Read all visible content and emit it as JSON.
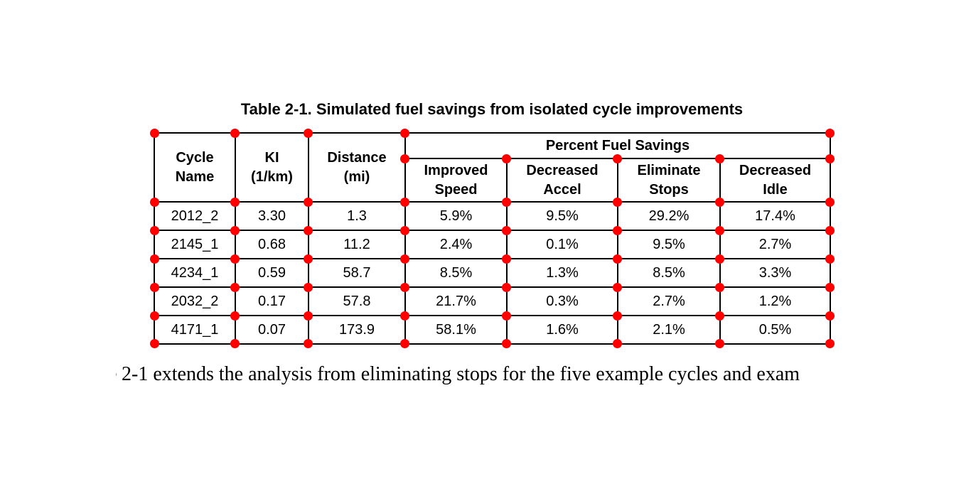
{
  "title": "Table 2-1. Simulated fuel savings from isolated cycle improvements",
  "table": {
    "span_header": "Percent Fuel Savings",
    "col_headers": [
      {
        "line1": "Cycle",
        "line2": "Name"
      },
      {
        "line1": "KI",
        "line2": "(1/km)"
      },
      {
        "line1": "Distance",
        "line2": "(mi)"
      },
      {
        "line1": "Improved",
        "line2": "Speed"
      },
      {
        "line1": "Decreased",
        "line2": "Accel"
      },
      {
        "line1": "Eliminate",
        "line2": "Stops"
      },
      {
        "line1": "Decreased",
        "line2": "Idle"
      }
    ],
    "rows": [
      [
        "2012_2",
        "3.30",
        "1.3",
        "5.9%",
        "9.5%",
        "29.2%",
        "17.4%"
      ],
      [
        "2145_1",
        "0.68",
        "11.2",
        "2.4%",
        "0.1%",
        "9.5%",
        "2.7%"
      ],
      [
        "4234_1",
        "0.59",
        "58.7",
        "8.5%",
        "1.3%",
        "8.5%",
        "3.3%"
      ],
      [
        "2032_2",
        "0.17",
        "57.8",
        "21.7%",
        "0.3%",
        "2.7%",
        "1.2%"
      ],
      [
        "4171_1",
        "0.07",
        "173.9",
        "58.1%",
        "1.6%",
        "2.1%",
        "0.5%"
      ]
    ]
  },
  "paragraph": {
    "clipped_glyph": "e",
    "text": "2-1 extends the analysis from eliminating stops for the five example cycles and exam"
  },
  "annotation": {
    "marker_color": "#ff0000",
    "marker_name": "corner-marker-dot"
  }
}
